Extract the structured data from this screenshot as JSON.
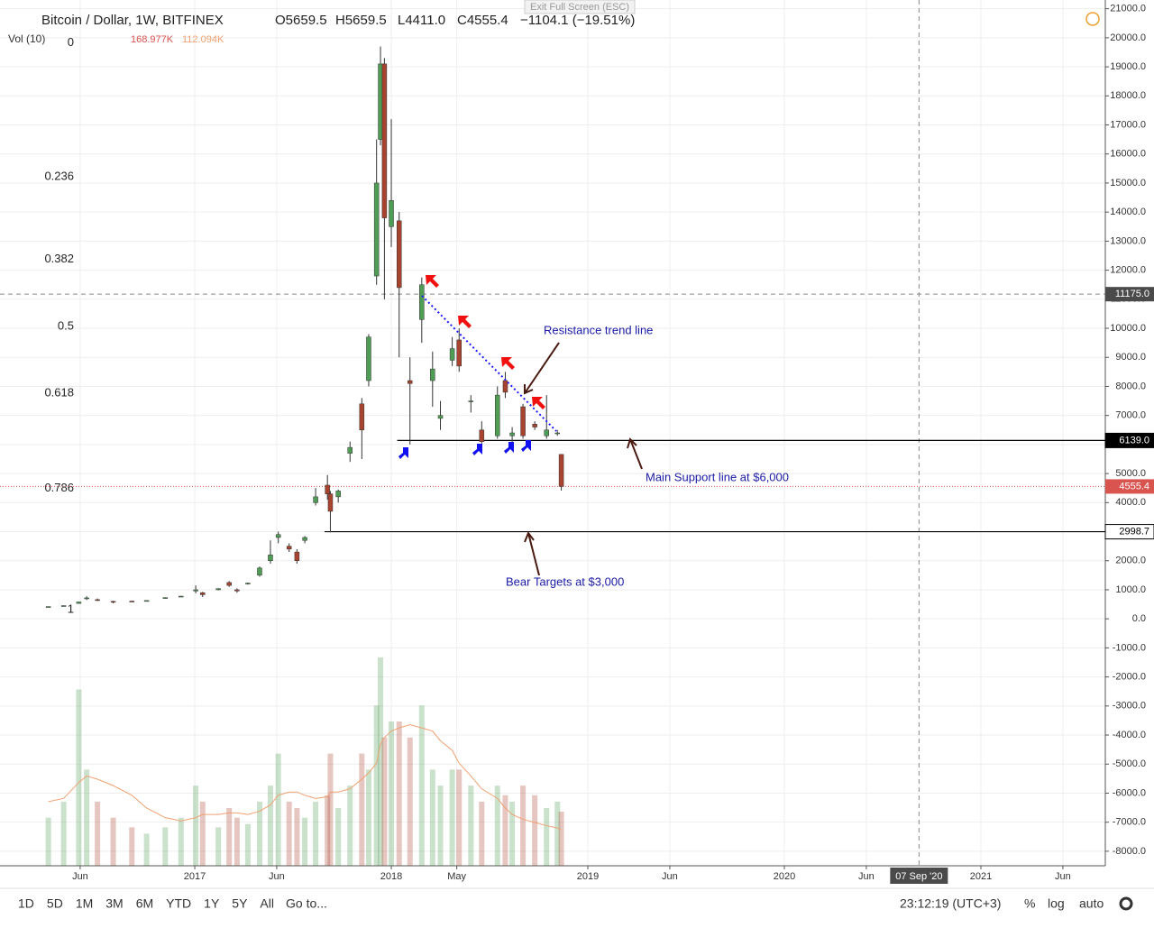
{
  "header": {
    "exit": "Exit Full Screen (ESC)",
    "symbol": "Bitcoin / Dollar, 1W, BITFINEX",
    "open": "O5659.5",
    "high": "H5659.5",
    "low": "L4411.0",
    "close": "C4555.4",
    "change": "−1104.1 (−19.51%)",
    "vol_title": "Vol (10)",
    "vol_value": "168.977K",
    "vol_ma": "112.094K"
  },
  "chart_data": {
    "type": "candlestick",
    "up_color": "#4f9d55",
    "down_color": "#a8432f",
    "grid": true,
    "x": [
      2016.255,
      2016.333,
      2016.41,
      2016.45,
      2016.505,
      2016.585,
      2016.68,
      2016.755,
      2016.85,
      2016.93,
      2017.005,
      2017.04,
      2017.12,
      2017.175,
      2017.215,
      2017.27,
      2017.33,
      2017.385,
      2017.425,
      2017.48,
      2017.52,
      2017.56,
      2017.615,
      2017.675,
      2017.69,
      2017.73,
      2017.79,
      2017.85,
      2017.885,
      2017.925,
      2017.945,
      2017.965,
      2018.0,
      2018.04,
      2018.095,
      2018.155,
      2018.21,
      2018.25,
      2018.31,
      2018.345,
      2018.405,
      2018.46,
      2018.54,
      2018.58,
      2018.615,
      2018.67,
      2018.73,
      2018.79,
      2018.845,
      2018.865
    ],
    "open": [
      418,
      445,
      530,
      700,
      660,
      600,
      610,
      615,
      700,
      760,
      960,
      900,
      1000,
      1250,
      1000,
      1200,
      1500,
      2000,
      2800,
      2500,
      2300,
      2700,
      4000,
      4600,
      4300,
      4200,
      5700,
      7400,
      8200,
      11800,
      16500,
      19100,
      13500,
      13700,
      8200,
      10300,
      8200,
      6900,
      8900,
      9600,
      7500,
      6500,
      6300,
      8200,
      6300,
      7300,
      6700,
      6300,
      6400,
      5659.5
    ],
    "high": [
      425,
      460,
      590,
      780,
      700,
      620,
      620,
      640,
      740,
      790,
      1150,
      930,
      1050,
      1300,
      1050,
      1250,
      1800,
      2700,
      3000,
      2600,
      2400,
      2850,
      4500,
      4950,
      4400,
      4450,
      6100,
      7600,
      9800,
      16500,
      19700,
      19300,
      17200,
      14000,
      9000,
      11750,
      9200,
      7500,
      9700,
      10000,
      7700,
      6800,
      8000,
      8500,
      6600,
      7400,
      6800,
      7700,
      6500,
      5659.5
    ],
    "low": [
      415,
      440,
      525,
      650,
      620,
      530,
      600,
      610,
      690,
      750,
      880,
      750,
      980,
      1100,
      900,
      1180,
      1450,
      1900,
      2600,
      2300,
      1900,
      2600,
      3900,
      4100,
      2980,
      4000,
      5400,
      5500,
      8000,
      11500,
      16300,
      11000,
      12800,
      9000,
      6000,
      9500,
      7300,
      6500,
      8700,
      8500,
      7100,
      5800,
      6200,
      7600,
      5900,
      6200,
      6500,
      6200,
      6300,
      4411
    ],
    "close": [
      422,
      455,
      580,
      720,
      650,
      580,
      608,
      630,
      730,
      780,
      1000,
      830,
      1040,
      1150,
      960,
      1230,
      1750,
      2200,
      2900,
      2400,
      2000,
      2800,
      4200,
      4300,
      3700,
      4400,
      5900,
      6500,
      9700,
      15000,
      19100,
      13800,
      14400,
      11400,
      8100,
      11500,
      8600,
      7000,
      9300,
      8700,
      7500,
      6100,
      7700,
      7800,
      6400,
      6300,
      6600,
      6500,
      6400,
      4555.4
    ],
    "volume": {
      "ylim": [
        0,
        2700
      ],
      "ma_color": "#f0a070",
      "values": [
        150,
        200,
        550,
        300,
        200,
        150,
        120,
        100,
        120,
        150,
        250,
        200,
        120,
        180,
        150,
        130,
        200,
        250,
        350,
        200,
        180,
        150,
        200,
        220,
        350,
        180,
        250,
        350,
        300,
        500,
        650,
        400,
        450,
        450,
        400,
        500,
        300,
        250,
        300,
        300,
        250,
        200,
        250,
        220,
        200,
        250,
        220,
        180,
        200,
        168.977
      ],
      "ma": [
        200,
        210,
        260,
        280,
        270,
        250,
        220,
        180,
        150,
        140,
        150,
        160,
        160,
        165,
        165,
        160,
        170,
        190,
        220,
        230,
        230,
        220,
        210,
        215,
        230,
        230,
        240,
        270,
        290,
        320,
        380,
        400,
        420,
        430,
        440,
        430,
        420,
        390,
        360,
        320,
        280,
        240,
        210,
        180,
        160,
        145,
        135,
        125,
        118,
        112.094
      ]
    },
    "xlim": [
      2016.009,
      2021.633
    ],
    "xticks": [
      {
        "value": 2016.417,
        "label": "Jun"
      },
      {
        "value": 2017,
        "label": "2017"
      },
      {
        "value": 2017.417,
        "label": "Jun"
      },
      {
        "value": 2018,
        "label": "2018"
      },
      {
        "value": 2018.333,
        "label": "May"
      },
      {
        "value": 2019,
        "label": "2019"
      },
      {
        "value": 2019.417,
        "label": "Jun"
      },
      {
        "value": 2020,
        "label": "2020"
      },
      {
        "value": 2020.417,
        "label": "Jun"
      },
      {
        "value": 2021,
        "label": "2021"
      },
      {
        "value": 2021.417,
        "label": "Jun"
      }
    ],
    "ylim": [
      -8500,
      21300
    ],
    "yticks": [
      {
        "value": -8000,
        "label": "-8000.0"
      },
      {
        "value": -7000,
        "label": "-7000.0"
      },
      {
        "value": -6000,
        "label": "-6000.0"
      },
      {
        "value": -5000,
        "label": "-5000.0"
      },
      {
        "value": -4000,
        "label": "-4000.0"
      },
      {
        "value": -3000,
        "label": "-3000.0"
      },
      {
        "value": -2000,
        "label": "-2000.0"
      },
      {
        "value": -1000,
        "label": "-1000.0"
      },
      {
        "value": 0,
        "label": "0.0"
      },
      {
        "value": 1000,
        "label": "1000.0"
      },
      {
        "value": 2000,
        "label": "2000.0"
      },
      {
        "value": 3000,
        "label": "3000.0"
      },
      {
        "value": 4000,
        "label": "4000.0"
      },
      {
        "value": 5000,
        "label": "5000.0"
      },
      {
        "value": 6000,
        "label": "6000.0"
      },
      {
        "value": 7000,
        "label": "7000.0"
      },
      {
        "value": 8000,
        "label": "8000.0"
      },
      {
        "value": 9000,
        "label": "9000.0"
      },
      {
        "value": 10000,
        "label": "10000.0"
      },
      {
        "value": 11000,
        "label": "11000.0"
      },
      {
        "value": 12000,
        "label": "12000.0"
      },
      {
        "value": 13000,
        "label": "13000.0"
      },
      {
        "value": 14000,
        "label": "14000.0"
      },
      {
        "value": 15000,
        "label": "15000.0"
      },
      {
        "value": 16000,
        "label": "16000.0"
      },
      {
        "value": 17000,
        "label": "17000.0"
      },
      {
        "value": 18000,
        "label": "18000.0"
      },
      {
        "value": 19000,
        "label": "19000.0"
      },
      {
        "value": 20000,
        "label": "20000.0"
      },
      {
        "value": 21000,
        "label": "21000.0"
      }
    ],
    "fib_levels": [
      {
        "value": 19820,
        "label": "0"
      },
      {
        "value": 15216,
        "label": "0.236"
      },
      {
        "value": 12367,
        "label": "0.382"
      },
      {
        "value": 10065,
        "label": "0.5"
      },
      {
        "value": 7763,
        "label": "0.618"
      },
      {
        "value": 4485,
        "label": "0.786"
      },
      {
        "value": 310,
        "label": "1"
      }
    ],
    "hlines": [
      {
        "value": 6139,
        "label": "6139.0",
        "from": 2018.03
      },
      {
        "value": 2998.7,
        "label": "2998.7",
        "from": 2017.66
      }
    ],
    "last_price": {
      "value": 4555.4,
      "label": "4555.4",
      "color": "#d9534f"
    },
    "crosshair": {
      "x": {
        "value": 2020.685,
        "label": "07 Sep '20"
      },
      "y": {
        "value": 11175,
        "label": "11175.0"
      }
    },
    "annotations": {
      "resistance": "Resistance trend line",
      "support": "Main Support line at $6,000",
      "bear": "Bear Targets at $3,000"
    }
  },
  "toolbar": {
    "ranges": [
      "1D",
      "5D",
      "1M",
      "3M",
      "6M",
      "YTD",
      "1Y",
      "5Y",
      "All"
    ],
    "goto": "Go to...",
    "time": "23:12:19 (UTC+3)",
    "percent": "%",
    "log": "log",
    "auto": "auto"
  }
}
